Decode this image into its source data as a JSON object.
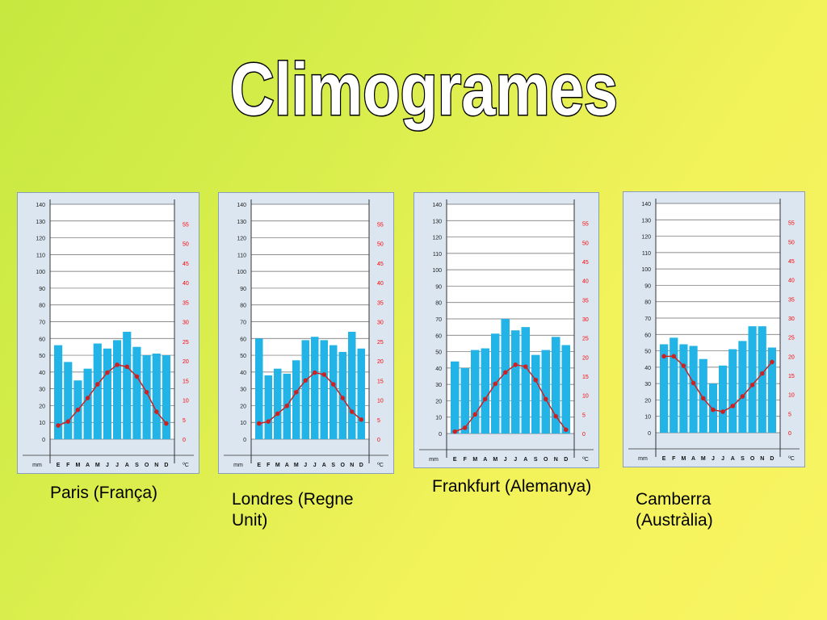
{
  "title": "Climogrames",
  "colors": {
    "bar": "#22b4e6",
    "line": "#cc2222",
    "grid": "#666666",
    "rightAxis": "#ff0000"
  },
  "axis": {
    "left_unit": "mm",
    "right_unit": "ºC",
    "left_ticks": [
      0,
      10,
      20,
      30,
      40,
      50,
      60,
      70,
      80,
      90,
      100,
      110,
      120,
      130,
      140
    ],
    "right_ticks": [
      0,
      5,
      10,
      15,
      20,
      25,
      30,
      35,
      40,
      45,
      50,
      55
    ],
    "months": [
      "E",
      "F",
      "M",
      "A",
      "M",
      "J",
      "J",
      "A",
      "S",
      "O",
      "N",
      "D"
    ]
  },
  "chart_data": [
    {
      "type": "bar",
      "caption": "Paris (França)",
      "categories": [
        "E",
        "F",
        "M",
        "A",
        "M",
        "J",
        "J",
        "A",
        "S",
        "O",
        "N",
        "D"
      ],
      "ylim": [
        0,
        140
      ],
      "y2lim": [
        0,
        60
      ],
      "series": [
        {
          "axis": "precipitation",
          "unit": "mm",
          "type": "bar",
          "values": [
            56,
            46,
            35,
            42,
            57,
            54,
            59,
            64,
            55,
            50,
            51,
            50
          ]
        },
        {
          "axis": "temperature",
          "unit": "ºC",
          "type": "line",
          "values": [
            3.5,
            4.5,
            7.5,
            10.5,
            14,
            17,
            19,
            18.5,
            16,
            12,
            7,
            4
          ]
        }
      ]
    },
    {
      "type": "bar",
      "caption": "Londres (Regne Unit)",
      "categories": [
        "E",
        "F",
        "M",
        "A",
        "M",
        "J",
        "J",
        "A",
        "S",
        "O",
        "N",
        "D"
      ],
      "ylim": [
        0,
        140
      ],
      "y2lim": [
        0,
        60
      ],
      "series": [
        {
          "axis": "precipitation",
          "unit": "mm",
          "type": "bar",
          "values": [
            60,
            38,
            42,
            39,
            47,
            59,
            61,
            59,
            56,
            52,
            64,
            54
          ]
        },
        {
          "axis": "temperature",
          "unit": "ºC",
          "type": "line",
          "values": [
            4,
            4.5,
            6.5,
            8.5,
            12,
            15,
            17,
            16.5,
            14,
            10.5,
            7,
            5
          ]
        }
      ]
    },
    {
      "type": "bar",
      "caption": "Frankfurt (Alemanya)",
      "categories": [
        "E",
        "F",
        "M",
        "A",
        "M",
        "J",
        "J",
        "A",
        "S",
        "O",
        "N",
        "D"
      ],
      "ylim": [
        0,
        140
      ],
      "y2lim": [
        0,
        60
      ],
      "series": [
        {
          "axis": "precipitation",
          "unit": "mm",
          "type": "bar",
          "values": [
            44,
            40,
            51,
            52,
            61,
            70,
            63,
            65,
            48,
            51,
            59,
            54
          ]
        },
        {
          "axis": "temperature",
          "unit": "ºC",
          "type": "line",
          "values": [
            0.5,
            1.5,
            5,
            9,
            13,
            16,
            18,
            17.5,
            14,
            9,
            4.5,
            1
          ]
        }
      ]
    },
    {
      "type": "bar",
      "caption": "Camberra (Austràlia)",
      "categories": [
        "E",
        "F",
        "M",
        "A",
        "M",
        "J",
        "J",
        "A",
        "S",
        "O",
        "N",
        "D"
      ],
      "ylim": [
        0,
        140
      ],
      "y2lim": [
        0,
        60
      ],
      "series": [
        {
          "axis": "precipitation",
          "unit": "mm",
          "type": "bar",
          "values": [
            54,
            58,
            54,
            53,
            45,
            30,
            41,
            51,
            56,
            65,
            65,
            52
          ]
        },
        {
          "axis": "temperature",
          "unit": "ºC",
          "type": "line",
          "values": [
            20,
            20,
            17.5,
            13,
            9,
            6,
            5.5,
            7,
            9.5,
            12.5,
            15.5,
            18.5
          ]
        }
      ]
    }
  ]
}
